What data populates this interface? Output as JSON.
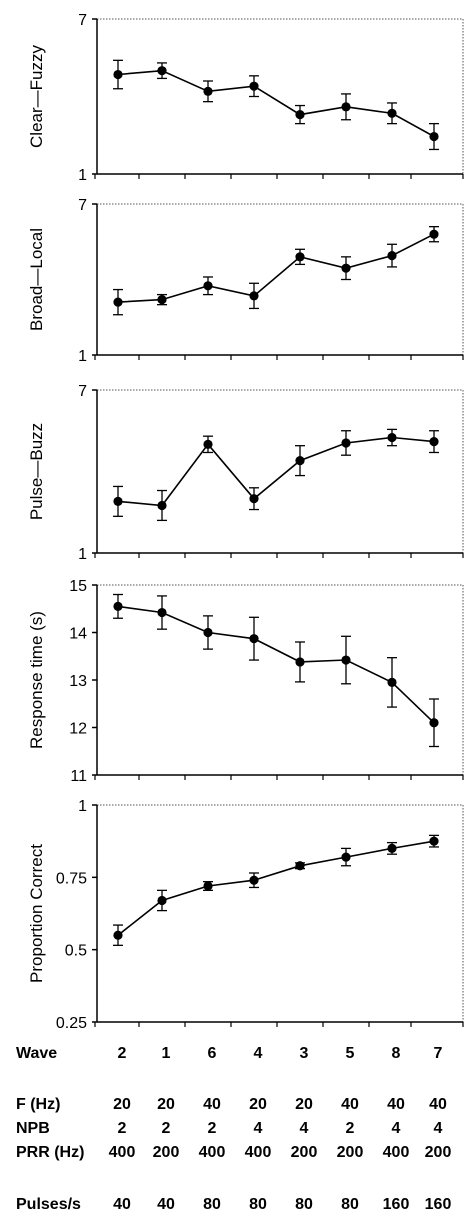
{
  "chart_data": [
    {
      "type": "line",
      "ylabel": "Clear—Fuzzy",
      "ylim": [
        1,
        7
      ],
      "yticks": [
        "1",
        "7"
      ],
      "values": [
        4.85,
        5.0,
        4.2,
        4.4,
        3.3,
        3.6,
        3.35,
        2.45
      ],
      "errors": [
        0.55,
        0.3,
        0.4,
        0.4,
        0.35,
        0.5,
        0.4,
        0.5
      ],
      "grid": false
    },
    {
      "type": "line",
      "ylabel": "Broad—Local",
      "ylim": [
        1,
        7
      ],
      "yticks": [
        "1",
        "7"
      ],
      "values": [
        3.1,
        3.2,
        3.75,
        3.35,
        4.9,
        4.45,
        4.95,
        5.8
      ],
      "errors": [
        0.5,
        0.2,
        0.35,
        0.5,
        0.3,
        0.45,
        0.45,
        0.3
      ],
      "grid": false
    },
    {
      "type": "line",
      "ylabel": "Pulse—Buzz",
      "ylim": [
        1,
        7
      ],
      "yticks": [
        "1",
        "7"
      ],
      "values": [
        2.9,
        2.75,
        5.0,
        3.0,
        4.4,
        5.05,
        5.25,
        5.1
      ],
      "errors": [
        0.55,
        0.55,
        0.3,
        0.4,
        0.55,
        0.45,
        0.3,
        0.4
      ],
      "grid": false
    },
    {
      "type": "line",
      "ylabel": "Response time (s)",
      "ylim": [
        11,
        15
      ],
      "yticks": [
        "11",
        "12",
        "13",
        "14",
        "15"
      ],
      "values": [
        14.55,
        14.42,
        14.0,
        13.87,
        13.38,
        13.42,
        12.95,
        12.1
      ],
      "errors": [
        0.25,
        0.35,
        0.35,
        0.45,
        0.42,
        0.5,
        0.52,
        0.5
      ],
      "grid": false
    },
    {
      "type": "line",
      "ylabel": "Proportion Correct",
      "ylim": [
        0.25,
        1
      ],
      "yticks": [
        "0.25",
        "0.5",
        "0.75",
        "1"
      ],
      "values": [
        0.55,
        0.67,
        0.72,
        0.74,
        0.79,
        0.82,
        0.85,
        0.875
      ],
      "errors": [
        0.035,
        0.035,
        0.015,
        0.025,
        0.01,
        0.03,
        0.02,
        0.02
      ],
      "grid": false
    }
  ],
  "table": [
    {
      "label": "Wave",
      "values": [
        "2",
        "1",
        "6",
        "4",
        "3",
        "5",
        "8",
        "7"
      ]
    },
    {
      "label": "F (Hz)",
      "values": [
        "20",
        "20",
        "40",
        "20",
        "20",
        "40",
        "40",
        "40"
      ]
    },
    {
      "label": "NPB",
      "values": [
        "2",
        "2",
        "2",
        "4",
        "4",
        "2",
        "4",
        "4"
      ]
    },
    {
      "label": "PRR (Hz)",
      "values": [
        "400",
        "200",
        "400",
        "400",
        "200",
        "200",
        "400",
        "200"
      ]
    },
    {
      "label": "Pulses/s",
      "values": [
        "40",
        "40",
        "80",
        "80",
        "80",
        "80",
        "160",
        "160"
      ]
    }
  ]
}
